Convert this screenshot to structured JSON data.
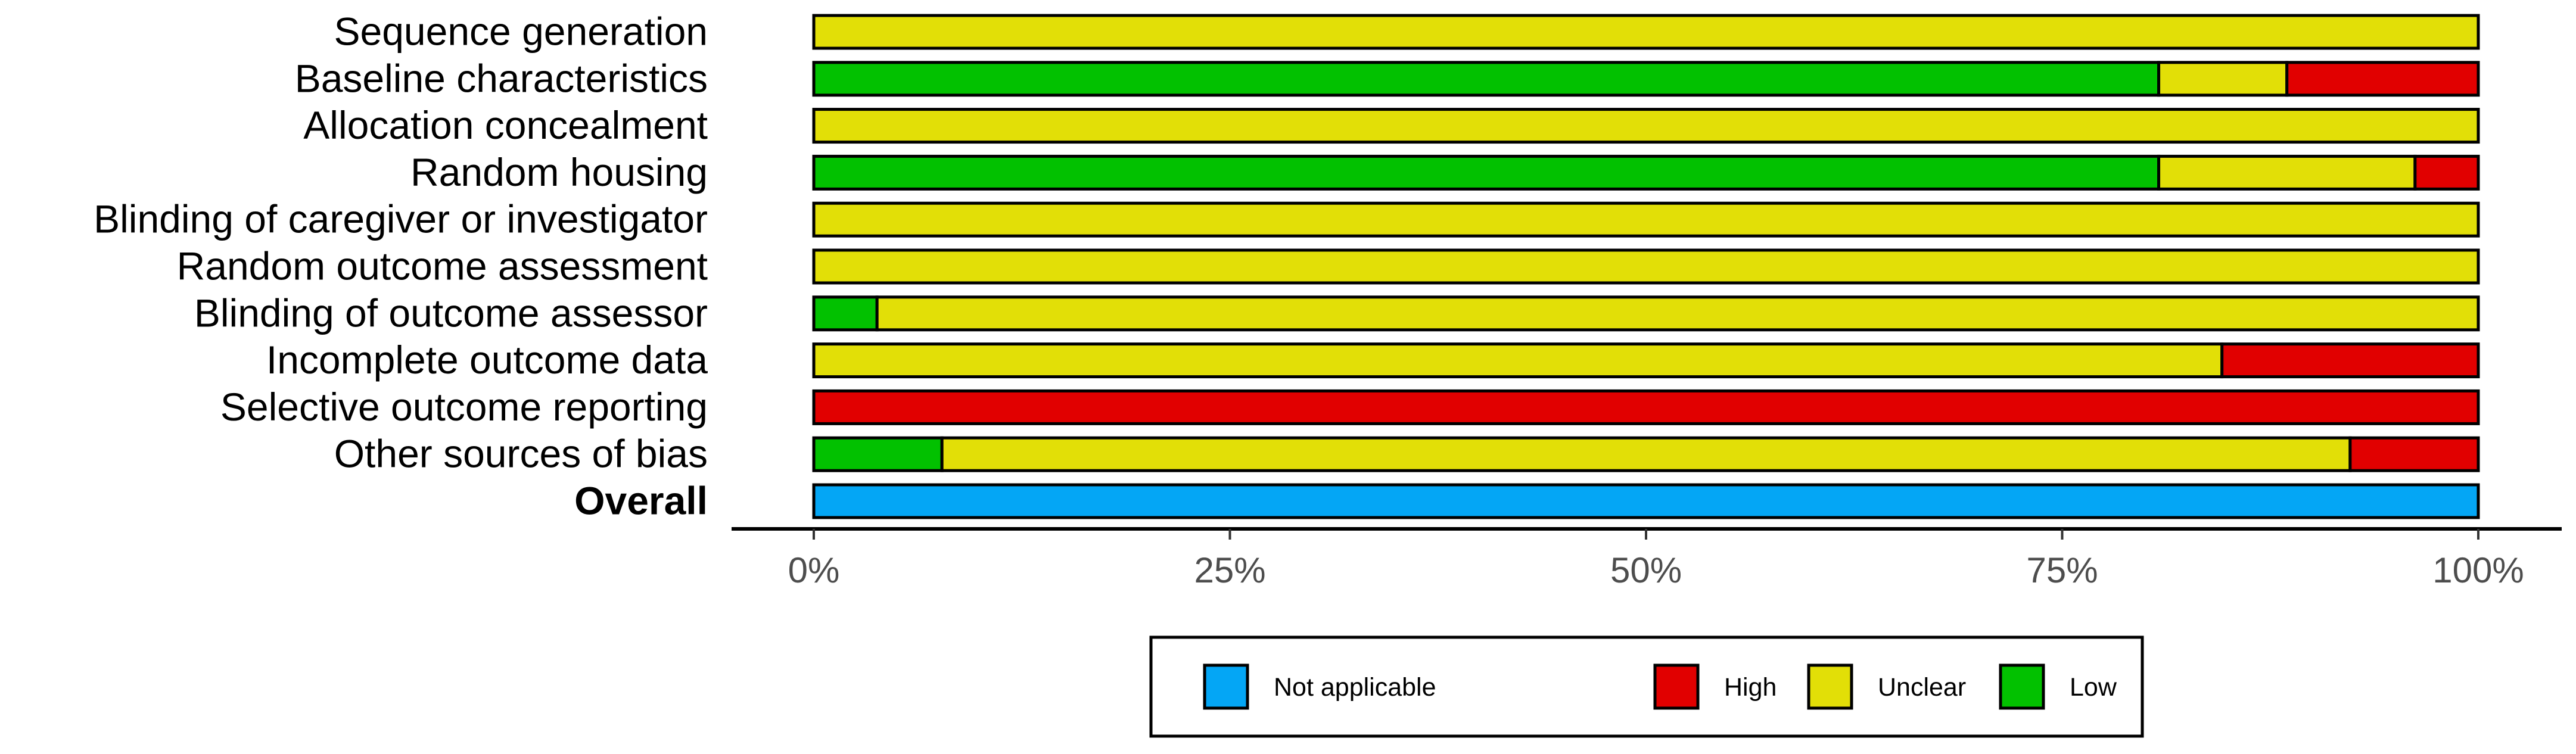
{
  "chart_data": {
    "type": "bar",
    "orientation": "horizontal",
    "stacked": true,
    "categories": [
      "Sequence generation",
      "Baseline characteristics",
      "Allocation concealment",
      "Random housing",
      "Blinding of caregiver or investigator",
      "Random outcome assessment",
      "Blinding of outcome assessor",
      "Incomplete outcome data",
      "Selective outcome reporting",
      "Other sources of bias",
      "Overall"
    ],
    "bold_categories": [
      "Overall"
    ],
    "series": [
      {
        "name": "Low",
        "color": "#02C100",
        "values": [
          0,
          80.8,
          0,
          80.8,
          0,
          0,
          3.8,
          0,
          0,
          7.7,
          0
        ]
      },
      {
        "name": "Unclear",
        "color": "#E2DF07",
        "values": [
          100,
          7.7,
          100,
          15.4,
          100,
          100,
          96.2,
          84.6,
          0,
          84.6,
          0
        ]
      },
      {
        "name": "High",
        "color": "#E10000",
        "values": [
          0,
          11.5,
          0,
          3.8,
          0,
          0,
          0,
          15.4,
          100,
          7.7,
          0
        ]
      },
      {
        "name": "Not applicable",
        "color": "#04A6F5",
        "values": [
          0,
          0,
          0,
          0,
          0,
          0,
          0,
          0,
          0,
          0,
          100
        ]
      }
    ],
    "xlim": [
      0,
      100
    ],
    "x_ticks": [
      "0%",
      "25%",
      "50%",
      "75%",
      "100%"
    ],
    "x_tick_values": [
      0,
      25,
      50,
      75,
      100
    ],
    "legend": {
      "position": "bottom",
      "items": [
        {
          "label": "Not applicable",
          "color": "#04A6F5"
        },
        {
          "label": "High",
          "color": "#E10000"
        },
        {
          "label": "Unclear",
          "color": "#E2DF07"
        },
        {
          "label": "Low",
          "color": "#02C100"
        }
      ]
    },
    "grid": false
  }
}
